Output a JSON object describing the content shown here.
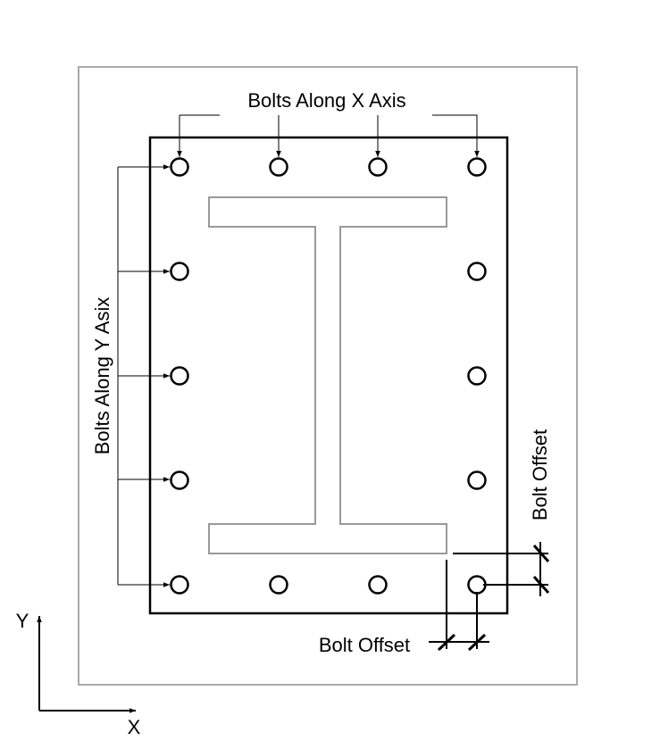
{
  "labels": {
    "bolts_x": "Bolts Along X Axis",
    "bolts_y": "Bolts Along Y Asix",
    "bolt_offset_right": "Bolt Offset",
    "bolt_offset_bottom": "Bolt Offset",
    "axis_y": "Y",
    "axis_x": "X"
  },
  "bolt_layout": {
    "bolts_along_x": 4,
    "bolts_along_y": 5
  },
  "colors": {
    "outline": "#000000",
    "section": "#999999",
    "frame": "#aaaaaa"
  }
}
